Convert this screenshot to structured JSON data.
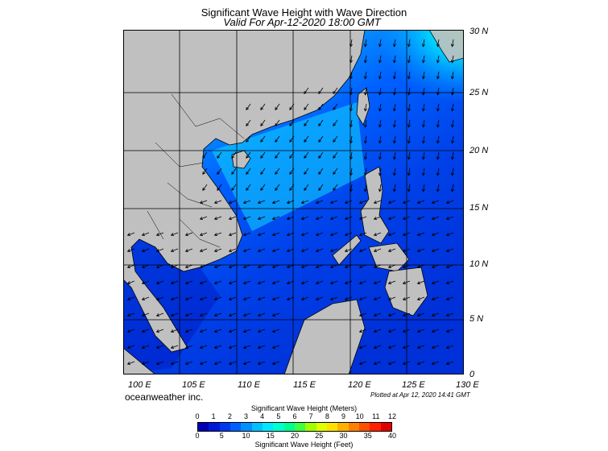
{
  "title": "Significant Wave Height with Wave Direction",
  "subtitle": "Valid For Apr-12-2020 18:00 GMT",
  "credit": "oceanweather inc.",
  "plotted": "Plotted at Apr 12, 2020 14:41 GMT",
  "lat_labels": [
    "30 N",
    "25 N",
    "20 N",
    "15 N",
    "10 N",
    "5 N",
    "0"
  ],
  "lon_labels": [
    "100 E",
    "105 E",
    "110 E",
    "115 E",
    "120 E",
    "125 E",
    "130 E"
  ],
  "colorbar": {
    "title_top": "Significant Wave Height (Meters)",
    "title_bottom": "Significant Wave Height (Feet)",
    "meters_ticks": [
      "0",
      "1",
      "2",
      "3",
      "4",
      "5",
      "6",
      "7",
      "8",
      "9",
      "10",
      "11",
      "12"
    ],
    "feet_ticks": [
      "0",
      "5",
      "10",
      "15",
      "20",
      "25",
      "30",
      "35",
      "40"
    ],
    "colors": [
      "#0000b4",
      "#0018d8",
      "#0038f0",
      "#0060ff",
      "#0090ff",
      "#00c0ff",
      "#00e8ff",
      "#00ffd0",
      "#00ff90",
      "#40ff40",
      "#a0ff00",
      "#e0ff00",
      "#ffe000",
      "#ffb000",
      "#ff8000",
      "#ff5000",
      "#ff2000",
      "#e00000"
    ]
  },
  "colors": {
    "land": "#c0c0c0",
    "coast": "#000000",
    "grid": "#000000"
  }
}
